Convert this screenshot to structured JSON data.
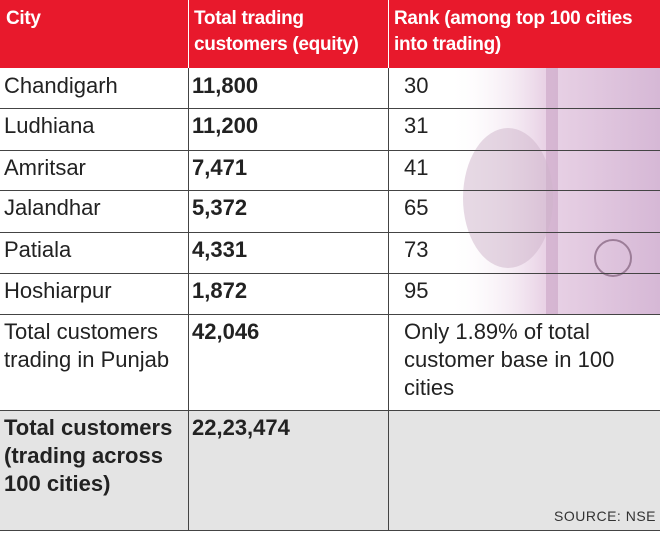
{
  "table": {
    "header": [
      "City",
      "Total trading customers (equity)",
      "Rank (among top 100 cities into trading)"
    ],
    "rows": [
      [
        "Chandigarh",
        "11,800",
        "30"
      ],
      [
        "Ludhiana",
        "11,200",
        "31"
      ],
      [
        "Amritsar",
        "7,471",
        "41"
      ],
      [
        "Jalandhar",
        "5,372",
        "65"
      ],
      [
        "Patiala",
        "4,331",
        "73"
      ],
      [
        "Hoshiarpur",
        "1,872",
        "95"
      ],
      [
        "Total customers trading in Punjab",
        "42,046",
        "Only 1.89% of total customer base in 100 cities"
      ],
      [
        "Total customers (trading across 100 cities)",
        "22,23,474",
        ""
      ]
    ],
    "source": "SOURCE: NSE"
  }
}
